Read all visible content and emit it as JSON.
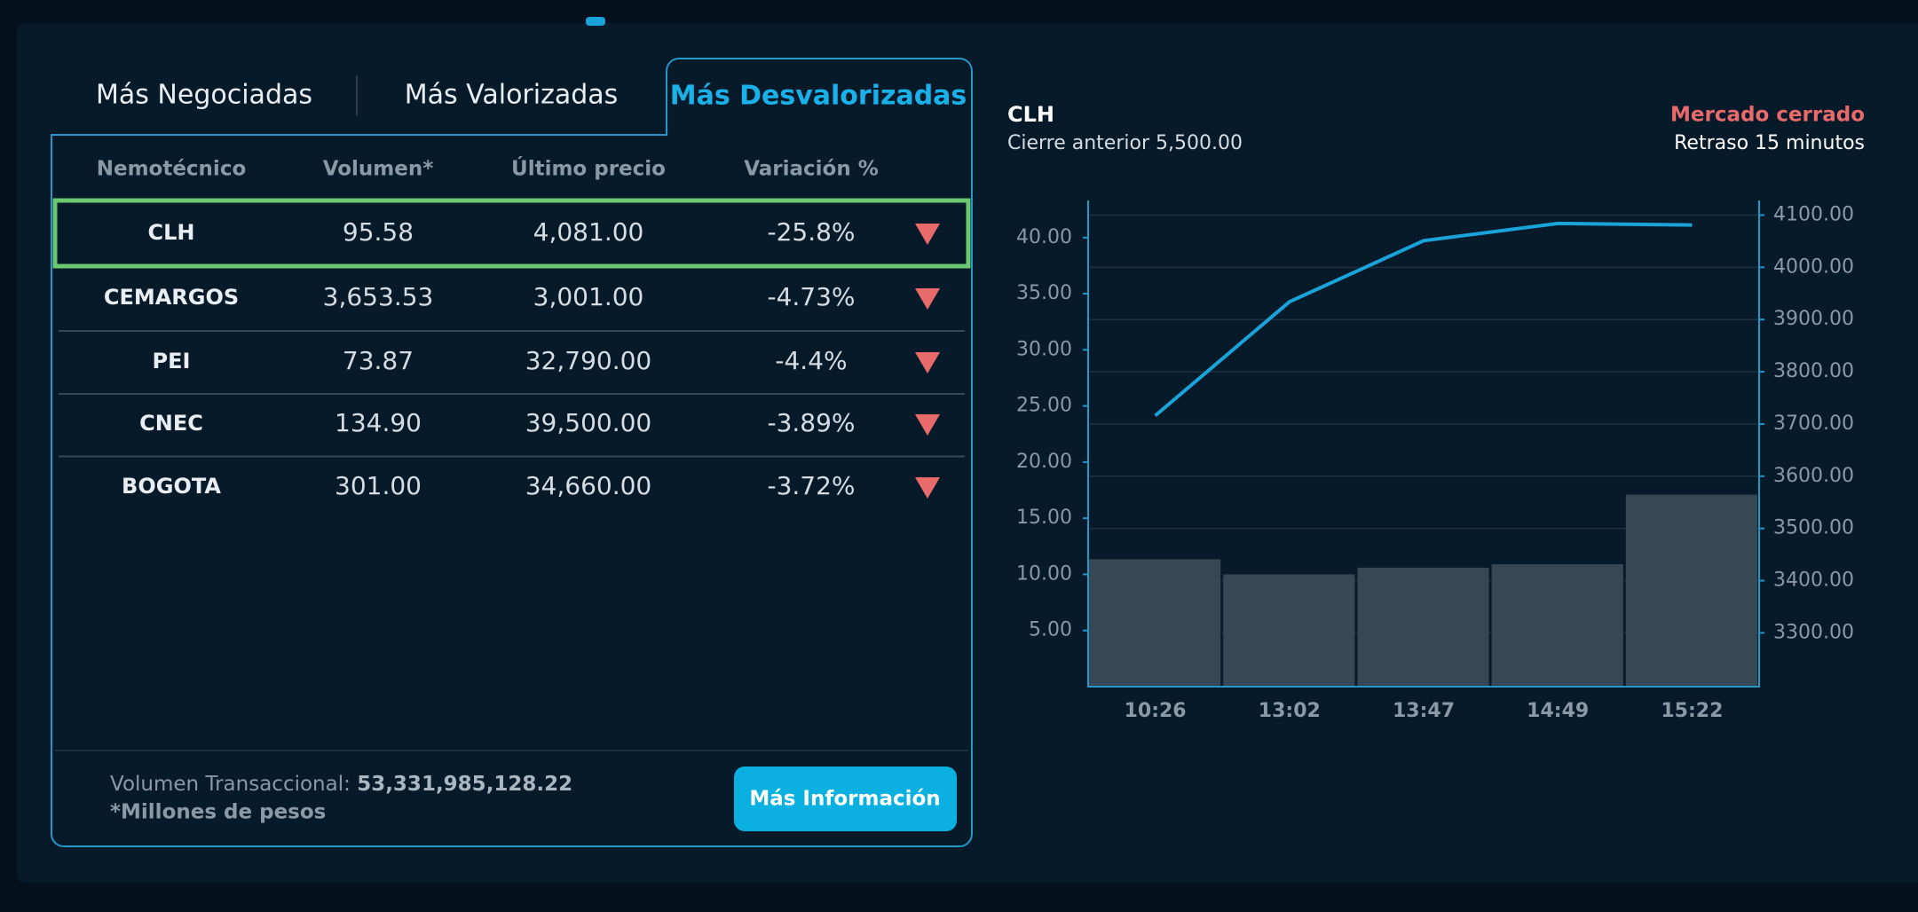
{
  "tabs": [
    "Más Negociadas",
    "Más Valorizadas",
    "Más Desvalorizadas"
  ],
  "table": {
    "headers": [
      "Nemotécnico",
      "Volumen*",
      "Último precio",
      "Variación %"
    ],
    "rows": [
      [
        "CLH",
        "95.58",
        "4,081.00",
        "-25.8%"
      ],
      [
        "CEMARGOS",
        "3,653.53",
        "3,001.00",
        "-4.73%"
      ],
      [
        "PEI",
        "73.87",
        "32,790.00",
        "-4.4%"
      ],
      [
        "CNEC",
        "134.90",
        "39,500.00",
        "-3.89%"
      ],
      [
        "BOGOTA",
        "301.00",
        "34,660.00",
        "-3.72%"
      ]
    ]
  },
  "footer": {
    "volume_label": "Volumen Transaccional:",
    "volume_value": "53,331,985,128.22",
    "note": "*Millones de pesos",
    "button": "Más Información"
  },
  "market_status": {
    "state": "Mercado cerrado",
    "delay": "Retraso 15 minutos"
  },
  "chart_data": {
    "type": "bar_line",
    "title": "CLH",
    "subtitle": "Cierre anterior 5,500.00",
    "categories": [
      "10:26",
      "13:02",
      "13:47",
      "14:49",
      "15:22"
    ],
    "series": [
      {
        "type": "bar",
        "color": "#364854",
        "values": [
          11.35,
          10.0,
          10.6,
          10.9,
          17.1
        ]
      },
      {
        "type": "line",
        "axis": "y2",
        "color": "#1aa3d9",
        "values": [
          3716,
          3934,
          4051,
          4084,
          4081
        ]
      }
    ],
    "ylim": [
      0,
      43.3
    ],
    "yticks": [
      {
        "value": 5,
        "label": "5.00"
      },
      {
        "value": 10,
        "label": "10.00"
      },
      {
        "value": 15,
        "label": "15.00"
      },
      {
        "value": 20,
        "label": "20.00"
      },
      {
        "value": 25,
        "label": "25.00"
      },
      {
        "value": 30,
        "label": "30.00"
      },
      {
        "value": 35,
        "label": "35.00"
      },
      {
        "value": 40,
        "label": "40.00"
      }
    ],
    "y2lim": [
      3197,
      4128
    ],
    "y2ticks": [
      {
        "value": 3300,
        "label": "3300.00"
      },
      {
        "value": 3400,
        "label": "3400.00"
      },
      {
        "value": 3500,
        "label": "3500.00"
      },
      {
        "value": 3600,
        "label": "3600.00"
      },
      {
        "value": 3700,
        "label": "3700.00"
      },
      {
        "value": 3800,
        "label": "3800.00"
      },
      {
        "value": 3900,
        "label": "3900.00"
      },
      {
        "value": 4000,
        "label": "4000.00"
      },
      {
        "value": 4100,
        "label": "4100.00"
      }
    ],
    "grid": true
  }
}
